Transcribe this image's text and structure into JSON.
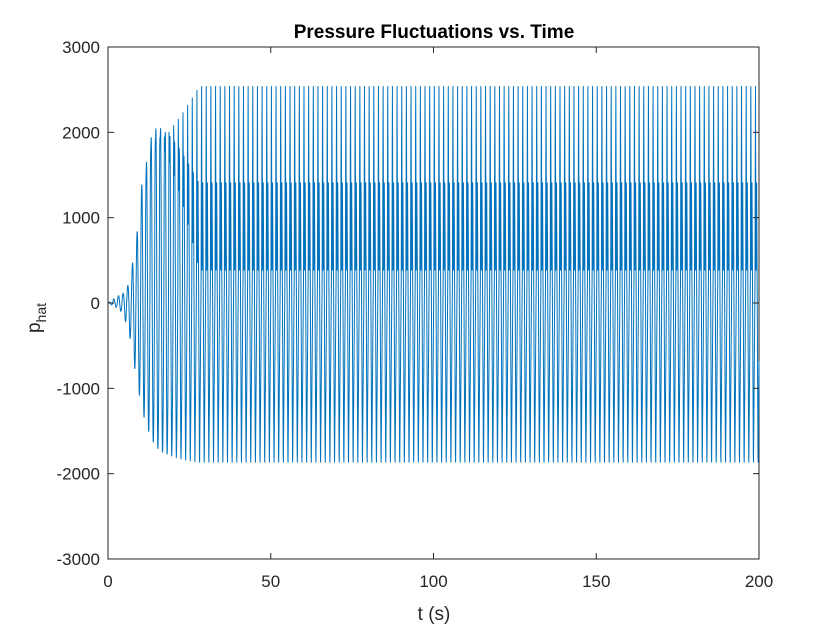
{
  "chart_data": {
    "type": "line",
    "title": "Pressure Fluctuations vs. Time",
    "xlabel": "t (s)",
    "ylabel_main": "p",
    "ylabel_sub": "hat",
    "xlim": [
      0,
      200
    ],
    "ylim": [
      -3000,
      3000
    ],
    "xticks": [
      0,
      50,
      100,
      150,
      200
    ],
    "xtick_labels": [
      "0",
      "50",
      "100",
      "150",
      "200"
    ],
    "yticks": [
      -3000,
      -2000,
      -1000,
      0,
      1000,
      2000,
      3000
    ],
    "ytick_labels": [
      "-3000",
      "-2000",
      "-1000",
      "0",
      "1000",
      "2000",
      "3000"
    ],
    "grid": false,
    "box": true,
    "series": [
      {
        "color": "#0072BD",
        "description_values": {
          "t_start": 0,
          "t_end": 200,
          "oscillation_period": 1.43,
          "growth_until_t": 28,
          "saturated_max": 2680,
          "saturated_secondary_peak": 1600,
          "saturated_secondary_trough": 270,
          "saturated_min": -1990
        },
        "x": [
          0,
          3,
          4,
          5,
          6,
          7,
          8,
          9,
          10,
          11,
          12,
          13,
          14,
          15,
          16,
          17,
          18,
          20,
          22,
          24,
          26,
          28,
          30,
          50,
          100,
          150,
          200
        ],
        "envelope_max": [
          0,
          80,
          110,
          120,
          200,
          300,
          650,
          900,
          1450,
          1600,
          1900,
          2200,
          2380,
          2490,
          2560,
          2600,
          2630,
          2660,
          2670,
          2675,
          2680,
          2680,
          2680,
          2680,
          2680,
          2680,
          2680
        ],
        "envelope_min": [
          0,
          -60,
          -100,
          -170,
          -300,
          -450,
          -720,
          -1000,
          -1170,
          -1380,
          -1520,
          -1640,
          -1740,
          -1810,
          -1860,
          -1900,
          -1930,
          -1960,
          -1975,
          -1985,
          -1990,
          -1990,
          -1990,
          -1990,
          -1990,
          -1990,
          -1990
        ]
      }
    ]
  }
}
